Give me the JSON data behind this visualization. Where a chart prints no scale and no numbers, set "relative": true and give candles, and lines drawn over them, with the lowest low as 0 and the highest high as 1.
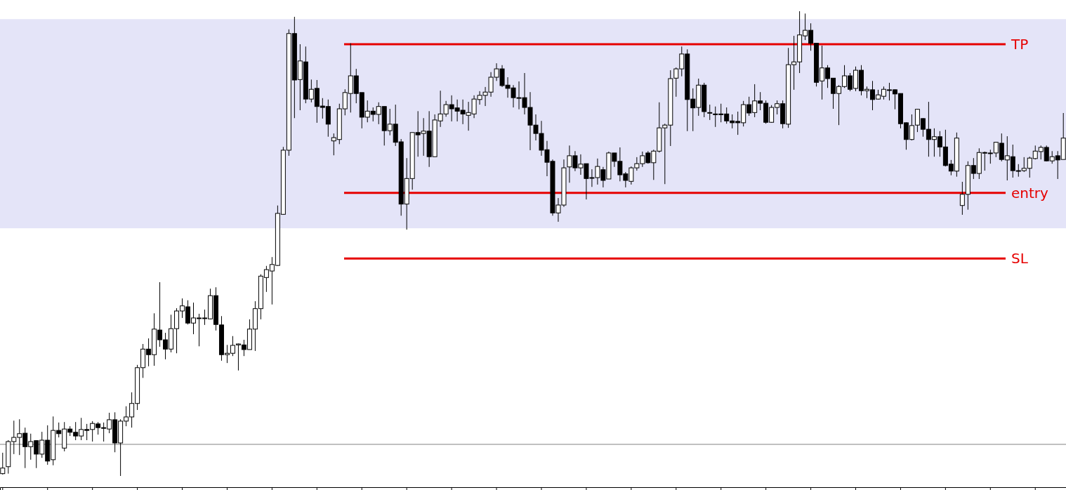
{
  "chart_data": {
    "type": "candlestick",
    "relative": true,
    "categories": [
      null,
      null,
      null,
      null,
      null,
      null,
      null,
      null,
      null,
      null,
      null,
      null,
      null,
      null,
      null,
      null,
      null,
      null,
      null,
      null,
      null,
      null,
      null,
      null,
      null,
      null,
      null,
      null,
      null,
      null,
      null,
      null,
      null,
      null,
      null,
      null,
      null,
      null,
      null,
      null,
      null,
      null,
      null,
      null,
      null,
      null,
      null,
      null,
      null,
      null,
      null,
      null,
      null,
      null,
      null,
      null,
      null,
      null,
      null,
      null,
      null,
      null,
      null,
      null,
      null,
      null,
      null,
      null,
      null,
      null,
      null,
      null,
      null,
      null,
      null,
      null,
      null,
      null,
      null,
      null,
      null,
      null,
      null,
      null,
      null,
      null,
      null,
      null,
      null,
      null,
      null,
      null,
      null,
      null,
      null,
      null,
      null,
      null,
      null,
      null,
      null,
      null,
      null,
      null,
      null,
      null,
      null,
      null,
      null,
      null,
      null,
      null,
      null,
      null,
      null,
      null,
      null,
      null,
      null,
      null,
      null,
      null,
      null,
      null,
      null,
      null,
      null,
      null,
      null,
      null,
      null,
      null,
      null,
      null,
      null,
      null,
      null,
      null,
      null,
      null,
      null,
      null,
      null,
      null,
      null,
      null,
      null,
      null,
      null,
      null,
      null,
      null,
      null,
      null,
      null,
      null,
      null,
      null,
      null,
      null,
      null,
      null,
      null,
      null,
      null,
      null,
      null,
      null,
      null,
      null,
      null,
      null,
      null,
      null,
      null,
      null,
      null,
      null,
      null,
      null,
      null,
      null,
      null,
      null,
      null,
      null,
      null,
      null,
      null,
      null
    ],
    "ohlc": [
      [
        0.005,
        0.05,
        0.003,
        0.017
      ],
      [
        0.02,
        0.077,
        0.005,
        0.074
      ],
      [
        0.074,
        0.119,
        0.047,
        0.083
      ],
      [
        0.083,
        0.122,
        0.045,
        0.091
      ],
      [
        0.092,
        0.104,
        0.017,
        0.063
      ],
      [
        0.063,
        0.091,
        0.035,
        0.074
      ],
      [
        0.076,
        0.077,
        0.017,
        0.047
      ],
      [
        0.047,
        0.095,
        0.039,
        0.077
      ],
      [
        0.077,
        0.109,
        0.024,
        0.032
      ],
      [
        0.035,
        0.128,
        0.023,
        0.098
      ],
      [
        0.098,
        0.115,
        0.083,
        0.091
      ],
      [
        0.06,
        0.116,
        0.053,
        0.101
      ],
      [
        0.101,
        0.107,
        0.086,
        0.094
      ],
      [
        0.094,
        0.116,
        0.077,
        0.086
      ],
      [
        0.086,
        0.125,
        0.077,
        0.1
      ],
      [
        0.1,
        0.112,
        0.077,
        0.098
      ],
      [
        0.1,
        0.118,
        0.074,
        0.113
      ],
      [
        0.112,
        0.116,
        0.089,
        0.104
      ],
      [
        0.104,
        0.115,
        0.074,
        0.103
      ],
      [
        0.101,
        0.136,
        0.092,
        0.121
      ],
      [
        0.121,
        0.137,
        0.051,
        0.071
      ],
      [
        0.071,
        0.122,
        0,
        0.118
      ],
      [
        0.118,
        0.15,
        0.107,
        0.127
      ],
      [
        0.127,
        0.18,
        0.104,
        0.156
      ],
      [
        0.156,
        0.239,
        0.142,
        0.233
      ],
      [
        0.233,
        0.284,
        0.211,
        0.273
      ],
      [
        0.273,
        0.296,
        0.236,
        0.261
      ],
      [
        0.261,
        0.35,
        0.237,
        0.316
      ],
      [
        0.314,
        0.417,
        0.278,
        0.293
      ],
      [
        0.293,
        0.308,
        0.251,
        0.273
      ],
      [
        0.273,
        0.347,
        0.266,
        0.317
      ],
      [
        0.317,
        0.361,
        0.264,
        0.355
      ],
      [
        0.355,
        0.382,
        0.34,
        0.366
      ],
      [
        0.364,
        0.378,
        0.326,
        0.329
      ],
      [
        0.329,
        0.373,
        0.305,
        0.34
      ],
      [
        0.34,
        0.349,
        0.279,
        0.34
      ],
      [
        0.34,
        0.358,
        0.325,
        0.34
      ],
      [
        0.338,
        0.403,
        0.337,
        0.388
      ],
      [
        0.388,
        0.406,
        0.313,
        0.326
      ],
      [
        0.325,
        0.344,
        0.248,
        0.261
      ],
      [
        0.261,
        0.282,
        0.243,
        0.264
      ],
      [
        0.264,
        0.301,
        0.258,
        0.281
      ],
      [
        0.282,
        0.285,
        0.227,
        0.284
      ],
      [
        0.282,
        0.293,
        0.258,
        0.272
      ],
      [
        0.272,
        0.337,
        0.272,
        0.316
      ],
      [
        0.316,
        0.376,
        0.269,
        0.36
      ],
      [
        0.36,
        0.434,
        0.337,
        0.43
      ],
      [
        0.427,
        0.452,
        0.396,
        0.444
      ],
      [
        0.441,
        0.471,
        0.369,
        0.455
      ],
      [
        0.453,
        0.582,
        0.452,
        0.565
      ],
      [
        0.563,
        0.708,
        0.562,
        0.701
      ],
      [
        0.701,
        0.961,
        0.689,
        0.952
      ],
      [
        0.952,
        0.988,
        0.77,
        0.852
      ],
      [
        0.853,
        0.929,
        0.787,
        0.893
      ],
      [
        0.891,
        0.924,
        0.802,
        0.811
      ],
      [
        0.811,
        0.853,
        0.804,
        0.832
      ],
      [
        0.834,
        0.852,
        0.76,
        0.795
      ],
      [
        0.796,
        0.813,
        0.769,
        0.793
      ],
      [
        0.795,
        0.81,
        0.73,
        0.757
      ],
      [
        0.721,
        0.737,
        0.69,
        0.728
      ],
      [
        0.724,
        0.801,
        0.714,
        0.79
      ],
      [
        0.79,
        0.832,
        0.776,
        0.825
      ],
      [
        0.823,
        0.931,
        0.782,
        0.861
      ],
      [
        0.861,
        0.876,
        0.802,
        0.823
      ],
      [
        0.825,
        0.825,
        0.748,
        0.772
      ],
      [
        0.772,
        0.808,
        0.761,
        0.785
      ],
      [
        0.785,
        0.793,
        0.763,
        0.778
      ],
      [
        0.778,
        0.804,
        0.757,
        0.795
      ],
      [
        0.795,
        0.795,
        0.711,
        0.743
      ],
      [
        0.743,
        0.79,
        0.733,
        0.757
      ],
      [
        0.757,
        0.799,
        0.71,
        0.718
      ],
      [
        0.719,
        0.725,
        0.56,
        0.585
      ],
      [
        0.585,
        0.684,
        0.53,
        0.64
      ],
      [
        0.64,
        0.739,
        0.616,
        0.739
      ],
      [
        0.739,
        0.785,
        0.687,
        0.734
      ],
      [
        0.737,
        0.77,
        0.689,
        0.742
      ],
      [
        0.742,
        0.785,
        0.665,
        0.687
      ],
      [
        0.687,
        0.778,
        0.687,
        0.766
      ],
      [
        0.764,
        0.829,
        0.751,
        0.779
      ],
      [
        0.779,
        0.807,
        0.773,
        0.799
      ],
      [
        0.799,
        0.819,
        0.763,
        0.79
      ],
      [
        0.792,
        0.81,
        0.763,
        0.785
      ],
      [
        0.787,
        0.81,
        0.757,
        0.779
      ],
      [
        0.776,
        0.805,
        0.743,
        0.782
      ],
      [
        0.779,
        0.819,
        0.77,
        0.811
      ],
      [
        0.81,
        0.828,
        0.799,
        0.819
      ],
      [
        0.819,
        0.837,
        0.796,
        0.826
      ],
      [
        0.826,
        0.869,
        0.816,
        0.858
      ],
      [
        0.858,
        0.888,
        0.85,
        0.876
      ],
      [
        0.876,
        0.884,
        0.837,
        0.84
      ],
      [
        0.841,
        0.858,
        0.814,
        0.834
      ],
      [
        0.835,
        0.841,
        0.793,
        0.814
      ],
      [
        0.814,
        0.849,
        0.789,
        0.814
      ],
      [
        0.814,
        0.867,
        0.778,
        0.793
      ],
      [
        0.793,
        0.826,
        0.701,
        0.755
      ],
      [
        0.755,
        0.778,
        0.722,
        0.737
      ],
      [
        0.737,
        0.764,
        0.689,
        0.701
      ],
      [
        0.702,
        0.721,
        0.645,
        0.675
      ],
      [
        0.677,
        0.681,
        0.56,
        0.566
      ],
      [
        0.566,
        0.598,
        0.547,
        0.583
      ],
      [
        0.583,
        0.681,
        0.579,
        0.663
      ],
      [
        0.665,
        0.711,
        0.631,
        0.689
      ],
      [
        0.689,
        0.699,
        0.656,
        0.663
      ],
      [
        0.663,
        0.692,
        0.648,
        0.671
      ],
      [
        0.672,
        0.672,
        0.595,
        0.64
      ],
      [
        0.642,
        0.66,
        0.622,
        0.642
      ],
      [
        0.642,
        0.683,
        0.627,
        0.666
      ],
      [
        0.659,
        0.665,
        0.621,
        0.636
      ],
      [
        0.639,
        0.698,
        0.639,
        0.695
      ],
      [
        0.695,
        0.695,
        0.665,
        0.677
      ],
      [
        0.677,
        0.707,
        0.634,
        0.648
      ],
      [
        0.65,
        0.654,
        0.621,
        0.636
      ],
      [
        0.634,
        0.666,
        0.627,
        0.663
      ],
      [
        0.663,
        0.686,
        0.657,
        0.672
      ],
      [
        0.672,
        0.698,
        0.665,
        0.689
      ],
      [
        0.695,
        0.699,
        0.672,
        0.674
      ],
      [
        0.674,
        0.702,
        0.637,
        0.699
      ],
      [
        0.699,
        0.804,
        0.696,
        0.749
      ],
      [
        0.749,
        0.758,
        0.628,
        0.755
      ],
      [
        0.755,
        0.873,
        0.71,
        0.855
      ],
      [
        0.856,
        0.879,
        0.816,
        0.876
      ],
      [
        0.876,
        0.924,
        0.86,
        0.908
      ],
      [
        0.908,
        0.918,
        0.742,
        0.81
      ],
      [
        0.811,
        0.834,
        0.742,
        0.792
      ],
      [
        0.793,
        0.855,
        0.775,
        0.841
      ],
      [
        0.841,
        0.846,
        0.772,
        0.784
      ],
      [
        0.782,
        0.799,
        0.766,
        0.782
      ],
      [
        0.779,
        0.795,
        0.751,
        0.778
      ],
      [
        0.779,
        0.801,
        0.761,
        0.778
      ],
      [
        0.779,
        0.793,
        0.758,
        0.764
      ],
      [
        0.764,
        0.778,
        0.748,
        0.76
      ],
      [
        0.763,
        0.784,
        0.734,
        0.76
      ],
      [
        0.76,
        0.807,
        0.752,
        0.799
      ],
      [
        0.799,
        0.816,
        0.775,
        0.781
      ],
      [
        0.782,
        0.843,
        0.772,
        0.807
      ],
      [
        0.807,
        0.826,
        0.787,
        0.802
      ],
      [
        0.802,
        0.808,
        0.758,
        0.761
      ],
      [
        0.761,
        0.798,
        0.76,
        0.793
      ],
      [
        0.793,
        0.808,
        0.778,
        0.801
      ],
      [
        0.801,
        0.808,
        0.748,
        0.758
      ],
      [
        0.757,
        0.921,
        0.749,
        0.885
      ],
      [
        0.885,
        0.947,
        0.831,
        0.891
      ],
      [
        0.891,
        1,
        0.867,
        0.949
      ],
      [
        0.947,
        0.995,
        0.938,
        0.959
      ],
      [
        0.959,
        0.974,
        0.915,
        0.931
      ],
      [
        0.931,
        0.931,
        0.838,
        0.847
      ],
      [
        0.85,
        0.926,
        0.81,
        0.878
      ],
      [
        0.878,
        0.884,
        0.835,
        0.855
      ],
      [
        0.856,
        0.856,
        0.79,
        0.823
      ],
      [
        0.823,
        0.841,
        0.755,
        0.838
      ],
      [
        0.838,
        0.884,
        0.835,
        0.861
      ],
      [
        0.861,
        0.867,
        0.828,
        0.832
      ],
      [
        0.834,
        0.881,
        0.828,
        0.873
      ],
      [
        0.873,
        0.884,
        0.819,
        0.829
      ],
      [
        0.829,
        0.838,
        0.813,
        0.832
      ],
      [
        0.831,
        0.85,
        0.787,
        0.81
      ],
      [
        0.811,
        0.831,
        0.81,
        0.82
      ],
      [
        0.817,
        0.838,
        0.81,
        0.832
      ],
      [
        0.831,
        0.846,
        0.808,
        0.831
      ],
      [
        0.831,
        0.832,
        0.789,
        0.822
      ],
      [
        0.823,
        0.823,
        0.748,
        0.758
      ],
      [
        0.76,
        0.761,
        0.702,
        0.724
      ],
      [
        0.724,
        0.778,
        0.722,
        0.754
      ],
      [
        0.755,
        0.79,
        0.74,
        0.789
      ],
      [
        0.769,
        0.77,
        0.73,
        0.746
      ],
      [
        0.746,
        0.805,
        0.687,
        0.724
      ],
      [
        0.724,
        0.748,
        0.687,
        0.73
      ],
      [
        0.73,
        0.742,
        0.687,
        0.708
      ],
      [
        0.708,
        0.745,
        0.666,
        0.668
      ],
      [
        0.671,
        0.68,
        0.647,
        0.656
      ],
      [
        0.656,
        0.739,
        0.644,
        0.727
      ],
      [
        0.582,
        0.633,
        0.562,
        0.606
      ],
      [
        0.606,
        0.677,
        0.573,
        0.668
      ],
      [
        0.668,
        0.684,
        0.639,
        0.651
      ],
      [
        0.651,
        0.705,
        0.639,
        0.696
      ],
      [
        0.696,
        0.698,
        0.657,
        0.696
      ],
      [
        0.695,
        0.702,
        0.672,
        0.695
      ],
      [
        0.695,
        0.719,
        0.686,
        0.718
      ],
      [
        0.716,
        0.737,
        0.677,
        0.681
      ],
      [
        0.68,
        0.731,
        0.636,
        0.689
      ],
      [
        0.687,
        0.713,
        0.642,
        0.657
      ],
      [
        0.657,
        0.671,
        0.644,
        0.657
      ],
      [
        0.657,
        0.686,
        0.654,
        0.662
      ],
      [
        0.662,
        0.687,
        0.642,
        0.684
      ],
      [
        0.683,
        0.711,
        0.681,
        0.699
      ],
      [
        0.698,
        0.711,
        0.681,
        0.707
      ],
      [
        0.707,
        0.711,
        0.677,
        0.678
      ],
      [
        0.678,
        0.699,
        0.672,
        0.687
      ],
      [
        0.689,
        0.699,
        0.639,
        0.68
      ],
      [
        0.681,
        0.781,
        0.681,
        0.727
      ]
    ],
    "bands": [
      {
        "axis": "y",
        "from": 0.533,
        "to": 0.983,
        "color": "#e4e4f8"
      }
    ],
    "ref_lines": [
      {
        "axis": "y",
        "value": 0.929,
        "label": "TP",
        "color": "#e60000"
      },
      {
        "axis": "y",
        "value": 0.609,
        "label": "entry",
        "color": "#e60000"
      },
      {
        "axis": "y",
        "value": 0.468,
        "label": "SL",
        "color": "#e60000"
      },
      {
        "axis": "y",
        "value": 0.068,
        "color": "#808080"
      }
    ]
  }
}
